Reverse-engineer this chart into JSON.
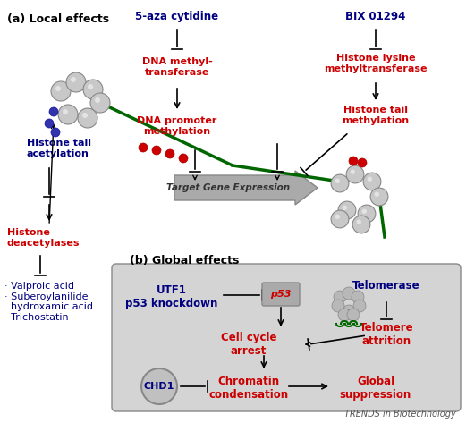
{
  "title": "",
  "bg_color": "#ffffff",
  "panel_bg": "#d4d4d4",
  "label_a": "(a) Local effects",
  "label_b": "(b) Global effects",
  "red_color": "#cc0000",
  "blue_color": "#000080",
  "dark_green": "#006600",
  "gray_text": "#555555",
  "trends_text": "TRENDS in Biotechnology",
  "items": {
    "5aza": "5-aza cytidine",
    "bix": "BIX 01294",
    "dna_methyl": "DNA methyl-\ntransferase",
    "dna_promoter": "DNA promoter\nmethylation",
    "histone_lysine": "Histone lysine\nmethyltransferase",
    "histone_tail_acet": "Histone tail\nacetylation",
    "histone_tail_meth": "Histone tail\nmethylation",
    "histone_deacet": "Histone\ndeacetylases",
    "target_gene": "Target Gene Expression",
    "valproic": "· Valproic acid\n· Suberoylanilide\n  hydroxamic acid\n· Trichostatin",
    "utf1": "UTF1\np53 knockdown",
    "p53": "p53",
    "cell_cycle": "Cell cycle\narrest",
    "telomerase": "Telomerase",
    "telomere": "Telomere\nattrition",
    "chd1": "CHD1",
    "chromatin": "Chromatin\ncondensation",
    "global_supp": "Global\nsuppression"
  }
}
